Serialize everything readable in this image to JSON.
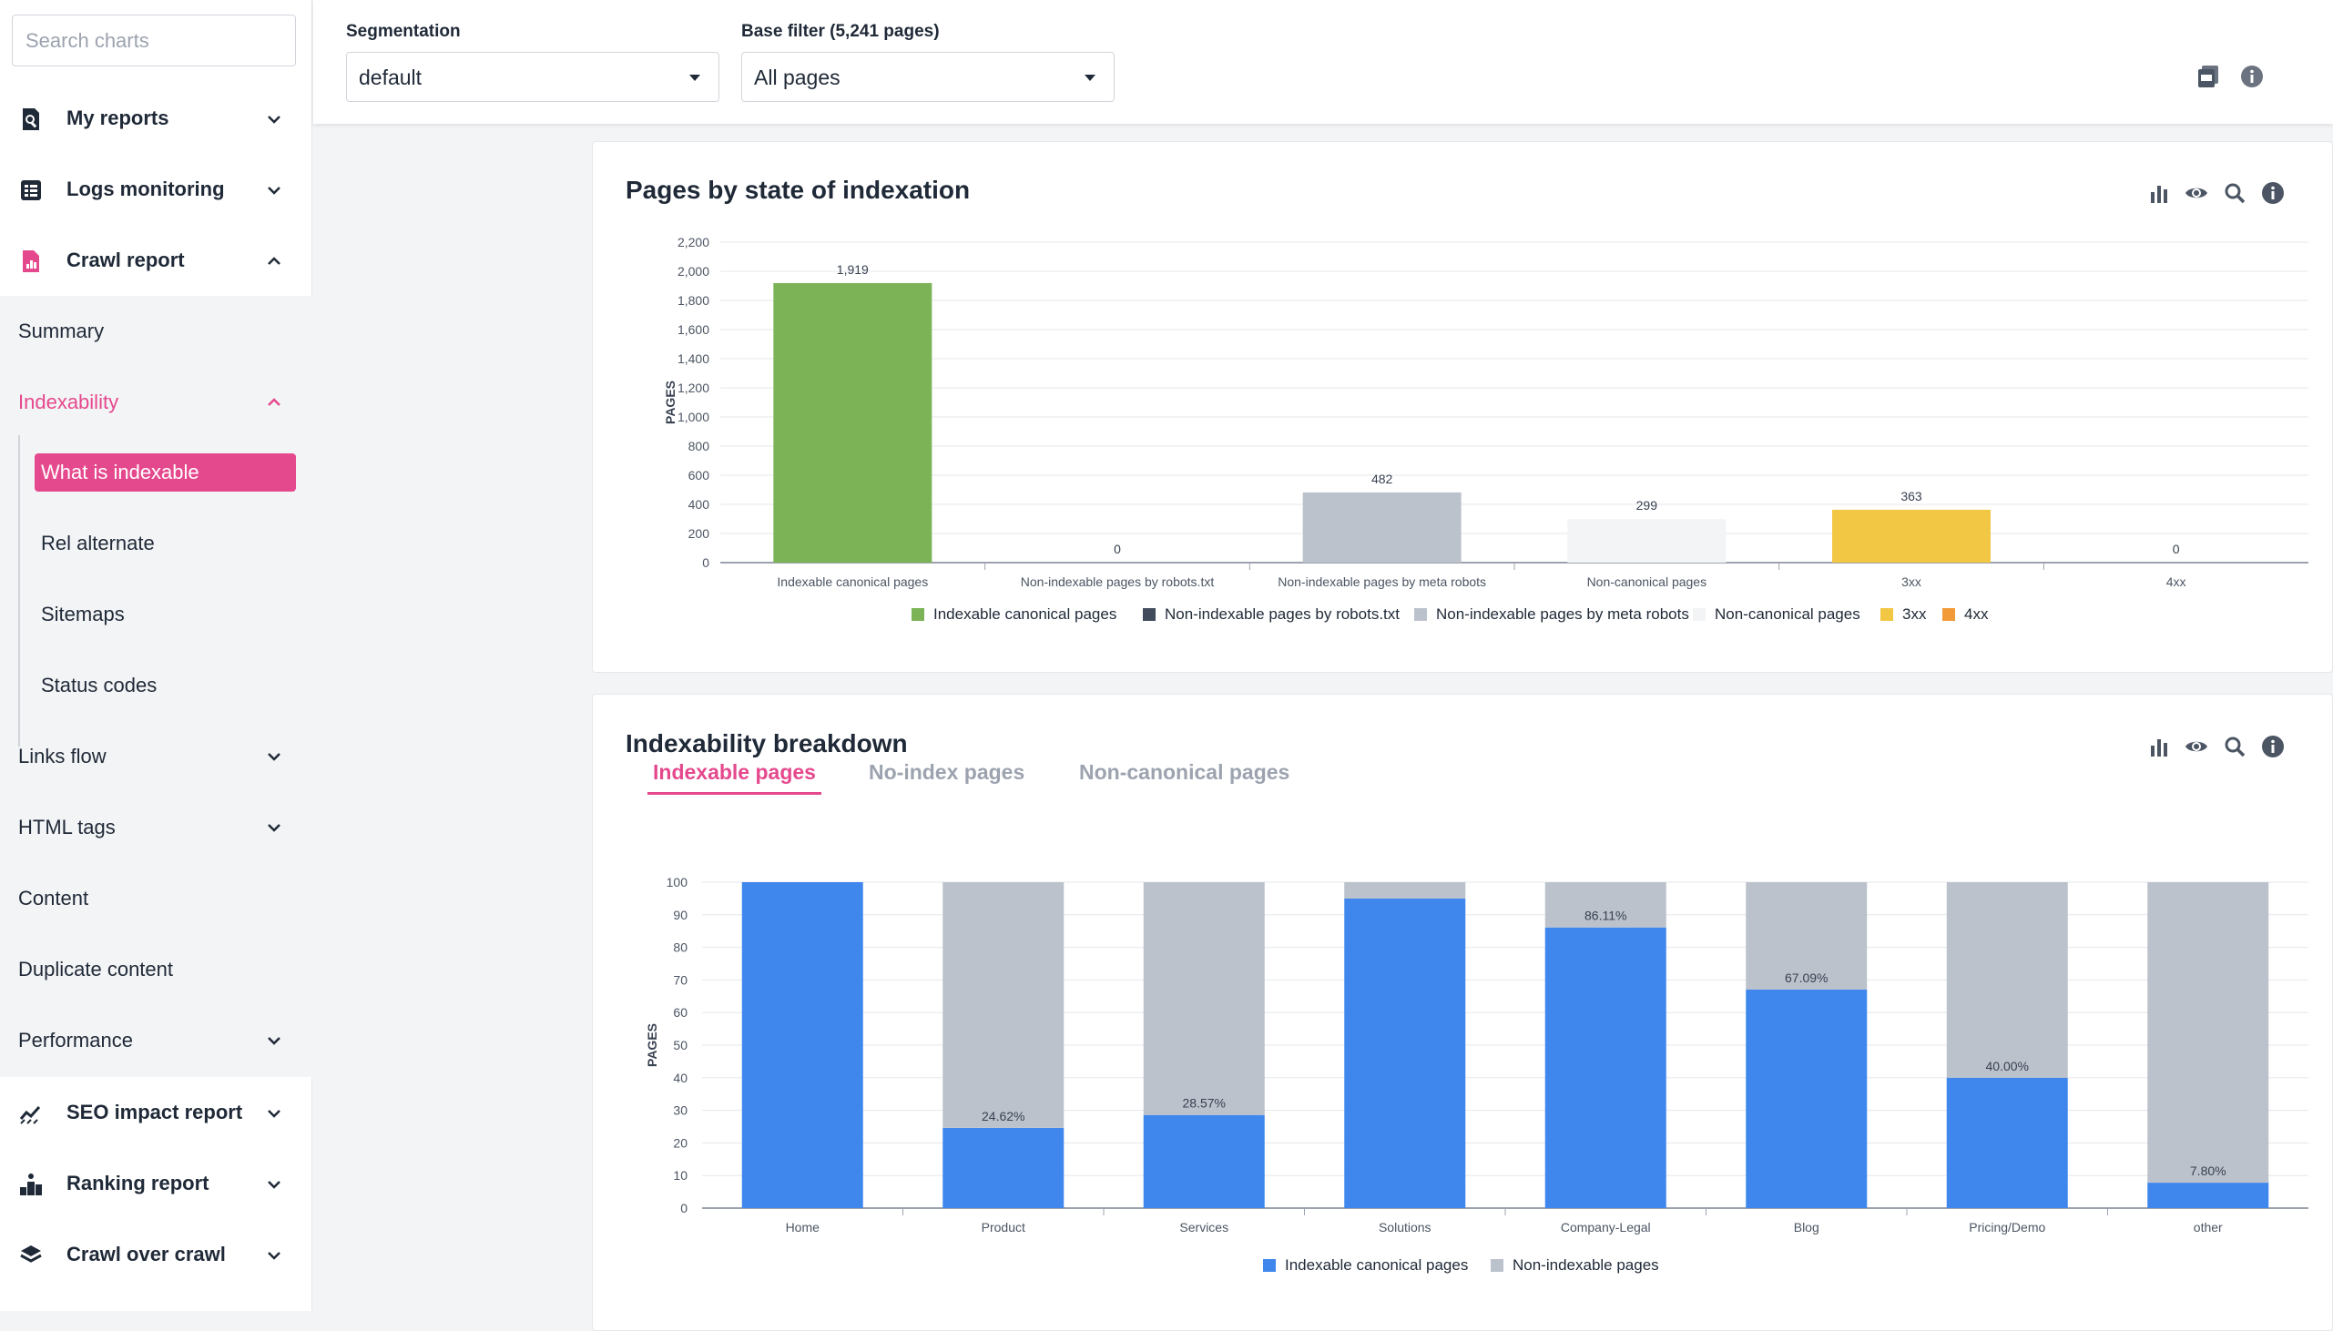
{
  "sidebar": {
    "search_placeholder": "Search charts",
    "sections": {
      "my_reports": "My reports",
      "logs_monitoring": "Logs monitoring",
      "crawl_report": "Crawl report",
      "seo_impact_report": "SEO impact report",
      "ranking_report": "Ranking report",
      "crawl_over_crawl": "Crawl over crawl"
    },
    "crawl_items": {
      "summary": "Summary",
      "indexability": "Indexability",
      "links_flow": "Links flow",
      "html_tags": "HTML tags",
      "content": "Content",
      "duplicate_content": "Duplicate content",
      "performance": "Performance"
    },
    "indexability_items": {
      "what_is_indexable": "What is indexable",
      "rel_alternate": "Rel alternate",
      "sitemaps": "Sitemaps",
      "status_codes": "Status codes"
    }
  },
  "topbar": {
    "segmentation_label": "Segmentation",
    "segmentation_value": "default",
    "base_filter_label": "Base filter (5,241 pages)",
    "base_filter_value": "All pages"
  },
  "colors": {
    "accent": "#e5498d",
    "indexable_green": "#7cb356",
    "robots_dark": "#424c5d",
    "meta_gray": "#bcc2cc",
    "canonical_light": "#f3f4f6",
    "xx3_yellow": "#f2c744",
    "xx4_orange": "#f29a38",
    "blue": "#3f87ed",
    "nonindexable_gray": "#bcc2cc"
  },
  "chart1_card": {
    "title": "Pages by state of indexation",
    "icons": [
      "bar-chart-icon",
      "eye-icon",
      "zoom-icon",
      "info-icon"
    ]
  },
  "chart2_card": {
    "title": "Indexability breakdown",
    "tabs": [
      "Indexable pages",
      "No-index pages",
      "Non-canonical pages"
    ]
  },
  "chart_data": [
    {
      "type": "bar",
      "title": "Pages by state of indexation",
      "ylabel": "PAGES",
      "ylim": [
        0,
        2200
      ],
      "yticks": [
        "0",
        "200",
        "400",
        "600",
        "800",
        "1,000",
        "1,200",
        "1,400",
        "1,600",
        "1,800",
        "2,000",
        "2,200"
      ],
      "categories": [
        "Indexable canonical pages",
        "Non-indexable pages by robots.txt",
        "Non-indexable pages by meta robots",
        "Non-canonical pages",
        "3xx",
        "4xx"
      ],
      "values": [
        1919,
        0,
        482,
        299,
        363,
        0
      ],
      "value_labels": [
        "1,919",
        "0",
        "482",
        "299",
        "363",
        "0"
      ],
      "colors": [
        "#7cb356",
        "#424c5d",
        "#bcc2cc",
        "#f3f4f6",
        "#f2c744",
        "#f29a38"
      ],
      "legend": [
        "Indexable canonical pages",
        "Non-indexable pages by robots.txt",
        "Non-indexable pages by meta robots",
        "Non-canonical pages",
        "3xx",
        "4xx"
      ],
      "legend_position": "bottom",
      "grid": true
    },
    {
      "type": "bar",
      "stacked": true,
      "ylabel": "PAGES",
      "ylim": [
        0,
        100
      ],
      "yticks": [
        "0",
        "10",
        "20",
        "30",
        "40",
        "50",
        "60",
        "70",
        "80",
        "90",
        "100"
      ],
      "categories": [
        "Home",
        "Product",
        "Services",
        "Solutions",
        "Company-Legal",
        "Blog",
        "Pricing/Demo",
        "other"
      ],
      "series": [
        {
          "name": "Indexable canonical pages",
          "color": "#3f87ed",
          "values": [
            100,
            24.62,
            28.57,
            95,
            86.11,
            67.09,
            40.0,
            7.8
          ]
        },
        {
          "name": "Non-indexable pages",
          "color": "#bcc2cc",
          "values": [
            0,
            75.38,
            71.43,
            5,
            13.89,
            32.91,
            60.0,
            92.2
          ]
        }
      ],
      "data_labels": [
        "",
        "24.62%",
        "28.57%",
        "",
        "86.11%",
        "67.09%",
        "40.00%",
        "7.80%"
      ],
      "legend_position": "bottom",
      "grid": true
    }
  ]
}
